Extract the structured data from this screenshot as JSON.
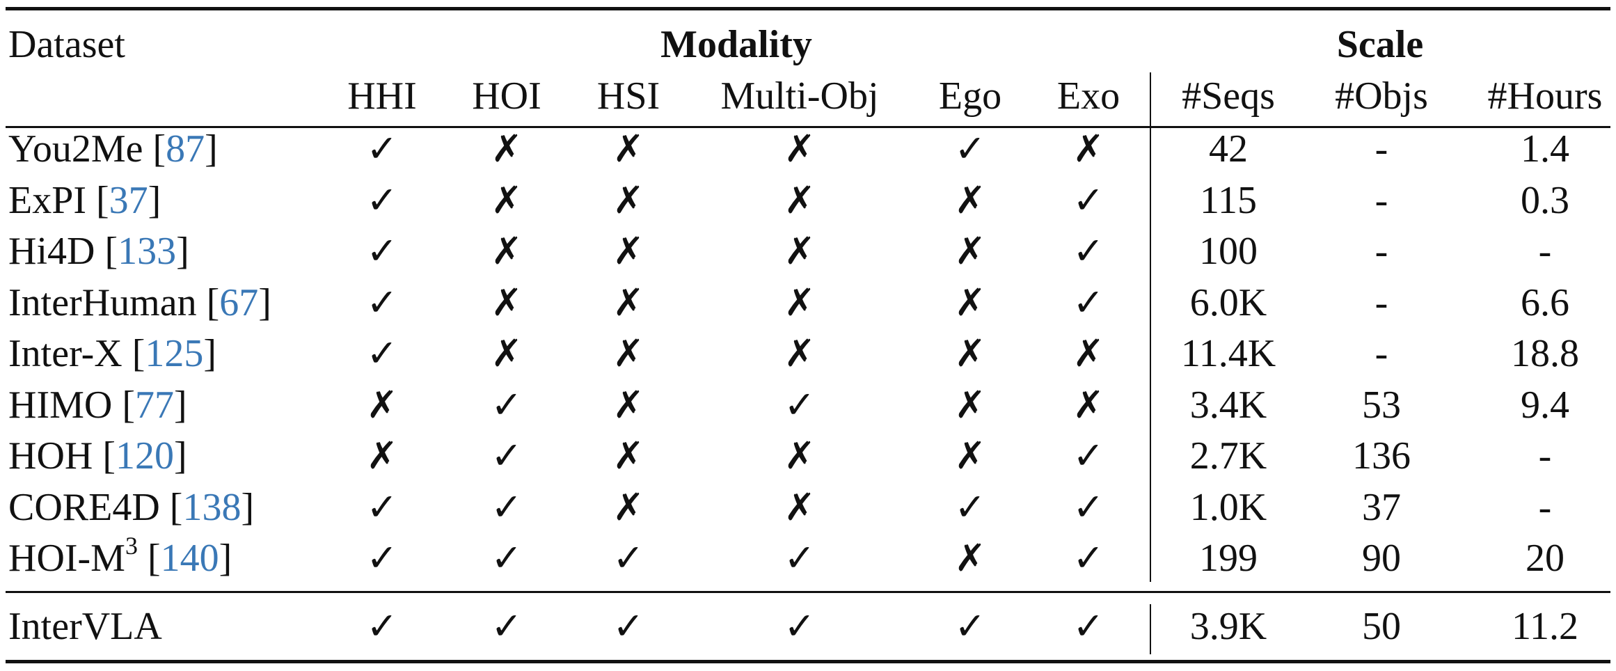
{
  "header": {
    "dataset": "Dataset",
    "modality": "Modality",
    "scale": "Scale",
    "columns": [
      "HHI",
      "HOI",
      "HSI",
      "Multi-Obj",
      "Ego",
      "Exo",
      "#Seqs",
      "#Objs",
      "#Hours"
    ]
  },
  "marks": {
    "yes": "✓",
    "no": "✗"
  },
  "rows": [
    {
      "name": "You2Me",
      "cite": "87",
      "flags": [
        "✓",
        "✗",
        "✗",
        "✗",
        "✓",
        "✗"
      ],
      "seqs": "42",
      "objs": "-",
      "hours": "1.4"
    },
    {
      "name": "ExPI",
      "cite": "37",
      "flags": [
        "✓",
        "✗",
        "✗",
        "✗",
        "✗",
        "✓"
      ],
      "seqs": "115",
      "objs": "-",
      "hours": "0.3"
    },
    {
      "name": "Hi4D",
      "cite": "133",
      "flags": [
        "✓",
        "✗",
        "✗",
        "✗",
        "✗",
        "✓"
      ],
      "seqs": "100",
      "objs": "-",
      "hours": "-"
    },
    {
      "name": "InterHuman",
      "cite": "67",
      "flags": [
        "✓",
        "✗",
        "✗",
        "✗",
        "✗",
        "✓"
      ],
      "seqs": "6.0K",
      "objs": "-",
      "hours": "6.6"
    },
    {
      "name": "Inter-X",
      "cite": "125",
      "flags": [
        "✓",
        "✗",
        "✗",
        "✗",
        "✗",
        "✗"
      ],
      "seqs": "11.4K",
      "objs": "-",
      "hours": "18.8"
    },
    {
      "name": "HIMO",
      "cite": "77",
      "flags": [
        "✗",
        "✓",
        "✗",
        "✓",
        "✗",
        "✗"
      ],
      "seqs": "3.4K",
      "objs": "53",
      "hours": "9.4"
    },
    {
      "name": "HOH",
      "cite": "120",
      "flags": [
        "✗",
        "✓",
        "✗",
        "✗",
        "✗",
        "✓"
      ],
      "seqs": "2.7K",
      "objs": "136",
      "hours": "-"
    },
    {
      "name": "CORE4D",
      "cite": "138",
      "flags": [
        "✓",
        "✓",
        "✗",
        "✗",
        "✓",
        "✓"
      ],
      "seqs": "1.0K",
      "objs": "37",
      "hours": "-"
    },
    {
      "name": "HOI-M",
      "sup": "3",
      "cite": "140",
      "flags": [
        "✓",
        "✓",
        "✓",
        "✓",
        "✗",
        "✓"
      ],
      "seqs": "199",
      "objs": "90",
      "hours": "20"
    }
  ],
  "final_row": {
    "name": "InterVLA",
    "flags": [
      "✓",
      "✓",
      "✓",
      "✓",
      "✓",
      "✓"
    ],
    "seqs": "3.9K",
    "objs": "50",
    "hours": "11.2"
  }
}
